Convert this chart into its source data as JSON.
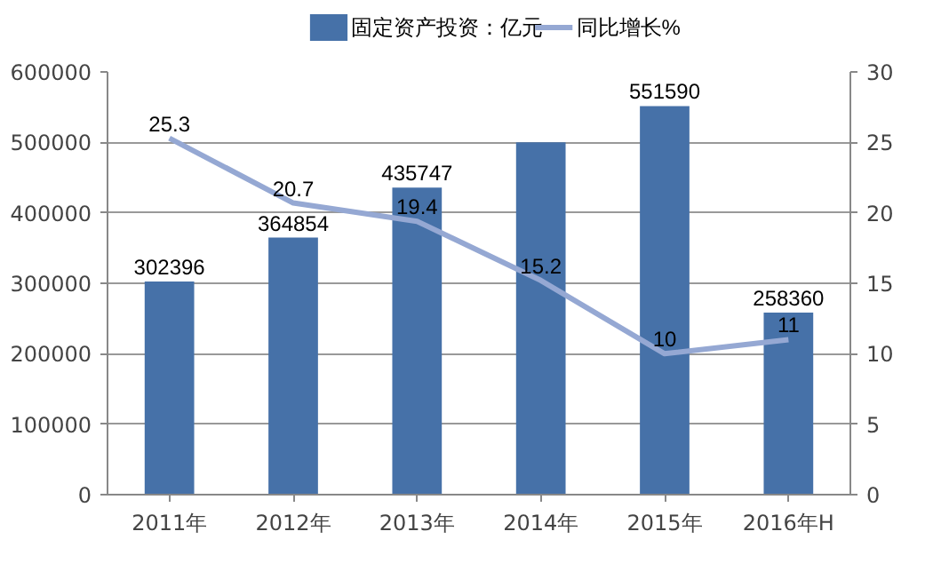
{
  "chart_data": {
    "type": "bar",
    "categories": [
      "2011年",
      "2012年",
      "2013年",
      "2014年",
      "2015年",
      "2016年H"
    ],
    "series": [
      {
        "name": "固定资产投资：亿元",
        "color": "#4671a8",
        "values": [
          302396,
          364854,
          435747,
          500000,
          551590,
          258360
        ],
        "value_labels": [
          "302396",
          "364854",
          "435747",
          null,
          "551590",
          "258360"
        ]
      },
      {
        "name": "同比增长%",
        "type": "line",
        "axis": "y2",
        "color": "#95a8d3",
        "values": [
          25.3,
          20.7,
          19.4,
          15.2,
          10,
          11
        ],
        "value_labels": [
          "25.3",
          "20.7",
          "19.4",
          "15.2",
          "10",
          "11"
        ]
      }
    ],
    "ylim": [
      0,
      600000
    ],
    "yticks": [
      0,
      100000,
      200000,
      300000,
      400000,
      500000,
      600000
    ],
    "y2lim": [
      0,
      30
    ],
    "y2ticks": [
      0,
      5,
      10,
      15,
      20,
      25,
      30
    ],
    "grid": "y",
    "legend": "top",
    "marker": "none",
    "line_style": "solid"
  }
}
